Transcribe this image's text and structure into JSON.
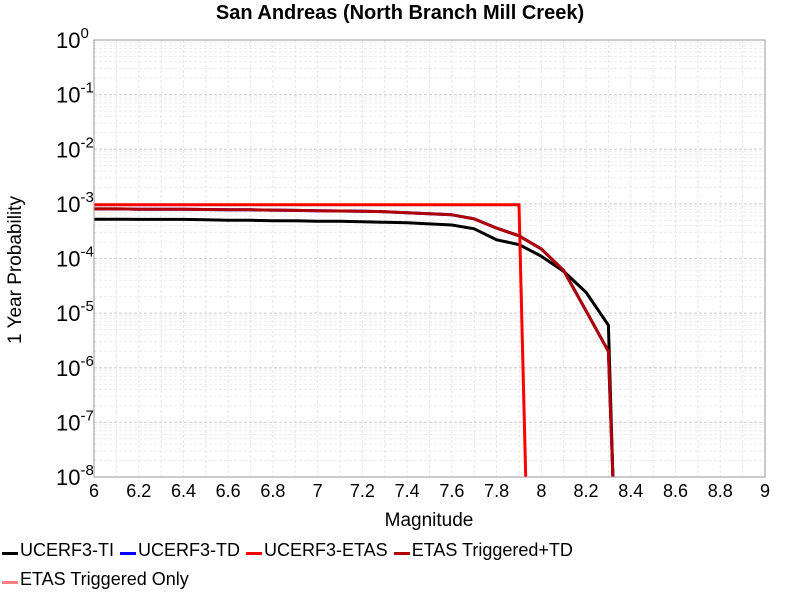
{
  "chart_data": {
    "type": "line",
    "title": "San Andreas (North Branch Mill Creek)",
    "xlabel": "Magnitude",
    "ylabel": "1 Year Probability",
    "xlim": [
      6,
      9
    ],
    "x_ticks": [
      "6",
      "6.2",
      "6.4",
      "6.6",
      "6.8",
      "7",
      "7.2",
      "7.4",
      "7.6",
      "7.8",
      "8",
      "8.2",
      "8.4",
      "8.6",
      "8.8",
      "9"
    ],
    "y_scale": "log",
    "ylim": [
      1e-08,
      1
    ],
    "y_ticks": [
      {
        "base": "10",
        "exp": "0"
      },
      {
        "base": "10",
        "exp": "-1"
      },
      {
        "base": "10",
        "exp": "-2"
      },
      {
        "base": "10",
        "exp": "-3"
      },
      {
        "base": "10",
        "exp": "-4"
      },
      {
        "base": "10",
        "exp": "-5"
      },
      {
        "base": "10",
        "exp": "-6"
      },
      {
        "base": "10",
        "exp": "-7"
      },
      {
        "base": "10",
        "exp": "-8"
      }
    ],
    "grid": true,
    "legend_position": "bottom",
    "series": [
      {
        "name": "UCERF3-TI",
        "color": "#000000",
        "x": [
          6.0,
          6.1,
          6.2,
          6.3,
          6.4,
          6.5,
          6.6,
          6.7,
          6.8,
          6.9,
          7.0,
          7.1,
          7.2,
          7.3,
          7.4,
          7.5,
          7.6,
          7.7,
          7.8,
          7.9,
          8.0,
          8.1,
          8.2,
          8.3,
          8.32
        ],
        "y": [
          0.000525,
          0.000525,
          0.00052,
          0.00052,
          0.00052,
          0.00051,
          0.0005,
          0.0005,
          0.00049,
          0.00049,
          0.00048,
          0.00048,
          0.00047,
          0.00046,
          0.00045,
          0.00043,
          0.00041,
          0.00035,
          0.00022,
          0.00018,
          0.00011,
          5.8e-05,
          2.4e-05,
          6e-06,
          1e-08
        ]
      },
      {
        "name": "UCERF3-TD",
        "color": "#0000ff",
        "x": [
          6.0,
          6.1,
          6.2,
          6.3,
          6.4,
          6.5,
          6.6,
          6.7,
          6.8,
          6.9,
          7.0,
          7.1,
          7.2,
          7.3,
          7.4,
          7.5,
          7.6,
          7.7,
          7.8,
          7.9,
          8.0,
          8.1,
          8.2,
          8.3,
          8.32
        ],
        "y": [
          0.00081,
          0.00081,
          0.0008,
          0.0008,
          0.0008,
          0.00079,
          0.00078,
          0.00078,
          0.00077,
          0.00076,
          0.00075,
          0.00074,
          0.00073,
          0.00072,
          0.00069,
          0.00066,
          0.00063,
          0.00053,
          0.00036,
          0.00026,
          0.00015,
          6e-05,
          1.1e-05,
          2e-06,
          1e-08
        ]
      },
      {
        "name": "UCERF3-ETAS",
        "color": "#ff0000",
        "x": [
          6.0,
          7.9,
          7.93
        ],
        "y": [
          0.00096,
          0.00096,
          1e-08
        ]
      },
      {
        "name": "ETAS Triggered+TD",
        "color": "#b00000",
        "x": [
          6.0,
          6.1,
          6.2,
          6.3,
          6.4,
          6.5,
          6.6,
          6.7,
          6.8,
          6.9,
          7.0,
          7.1,
          7.2,
          7.3,
          7.4,
          7.5,
          7.6,
          7.7,
          7.8,
          7.9,
          8.0,
          8.1,
          8.2,
          8.3,
          8.32
        ],
        "y": [
          0.00081,
          0.00081,
          0.0008,
          0.0008,
          0.0008,
          0.00079,
          0.00078,
          0.00078,
          0.00077,
          0.00076,
          0.00075,
          0.00074,
          0.00073,
          0.00072,
          0.00069,
          0.00066,
          0.00063,
          0.00053,
          0.00036,
          0.00026,
          0.00015,
          6e-05,
          1.1e-05,
          2e-06,
          1e-08
        ]
      },
      {
        "name": "ETAS Triggered Only",
        "color": "#ff8080",
        "x": [],
        "y": []
      }
    ]
  }
}
